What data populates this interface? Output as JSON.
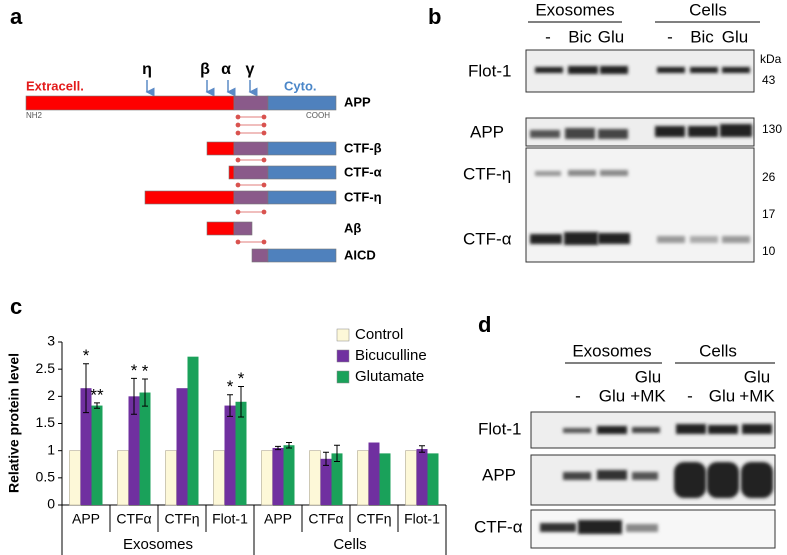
{
  "panel_a": {
    "label": "a",
    "sites": [
      "η",
      "β",
      "α",
      "γ"
    ],
    "regions": [
      "Extracell.",
      "Cyto."
    ],
    "termini": [
      "NH2",
      "COOH"
    ],
    "fragments": [
      "APP",
      "CTF-β",
      "CTF-α",
      "CTF-η",
      "Aβ",
      "AICD"
    ]
  },
  "panel_b": {
    "label": "b",
    "groups": [
      "Exosomes",
      "Cells"
    ],
    "lanes": [
      "-",
      "Bic",
      "Glu",
      "-",
      "Bic",
      "Glu"
    ],
    "unit": "kDa",
    "blots": [
      "Flot-1",
      "APP",
      "CTF-η",
      "CTF-α"
    ],
    "markers": [
      43,
      130,
      26,
      17,
      10
    ]
  },
  "chart_data": {
    "type": "bar",
    "panel_label": "c",
    "ylabel": "Relative protein level",
    "groups": [
      "Exosomes",
      "Cells"
    ],
    "categories": [
      "APP",
      "CTFα",
      "CTFη",
      "Flot-1",
      "APP",
      "CTFα",
      "CTFη",
      "Flot-1"
    ],
    "series": [
      {
        "name": "Control",
        "color": "#fdf8d8",
        "values": [
          1,
          1,
          1,
          1,
          1,
          1,
          1,
          1
        ]
      },
      {
        "name": "Bicuculline",
        "color": "#7030a0",
        "values": [
          2.15,
          2.0,
          2.15,
          1.83,
          1.05,
          0.85,
          1.15,
          1.03
        ],
        "errors": [
          0.45,
          0.33,
          null,
          0.2,
          0.03,
          0.12,
          null,
          0.06
        ],
        "stars": [
          "*",
          "*",
          null,
          "*",
          null,
          null,
          null,
          null
        ]
      },
      {
        "name": "Glutamate",
        "color": "#1aa15a",
        "values": [
          1.83,
          2.07,
          2.73,
          1.9,
          1.1,
          0.95,
          0.95,
          0.95
        ],
        "errors": [
          0.05,
          0.25,
          null,
          0.28,
          0.05,
          0.15,
          null,
          null
        ],
        "stars": [
          "**",
          "*",
          null,
          "*",
          null,
          null,
          null,
          null
        ]
      }
    ],
    "ylim": [
      0,
      3
    ],
    "yticks": [
      0,
      0.5,
      1,
      1.5,
      2,
      2.5,
      3
    ],
    "legend": "upper right"
  },
  "panel_d": {
    "label": "d",
    "groups": [
      "Exosomes",
      "Cells"
    ],
    "lanes": [
      "-",
      "Glu",
      [
        "Glu",
        "+MK"
      ],
      "-",
      "Glu",
      [
        "Glu",
        "+MK"
      ]
    ],
    "blots": [
      "Flot-1",
      "APP",
      "CTF-α"
    ]
  }
}
